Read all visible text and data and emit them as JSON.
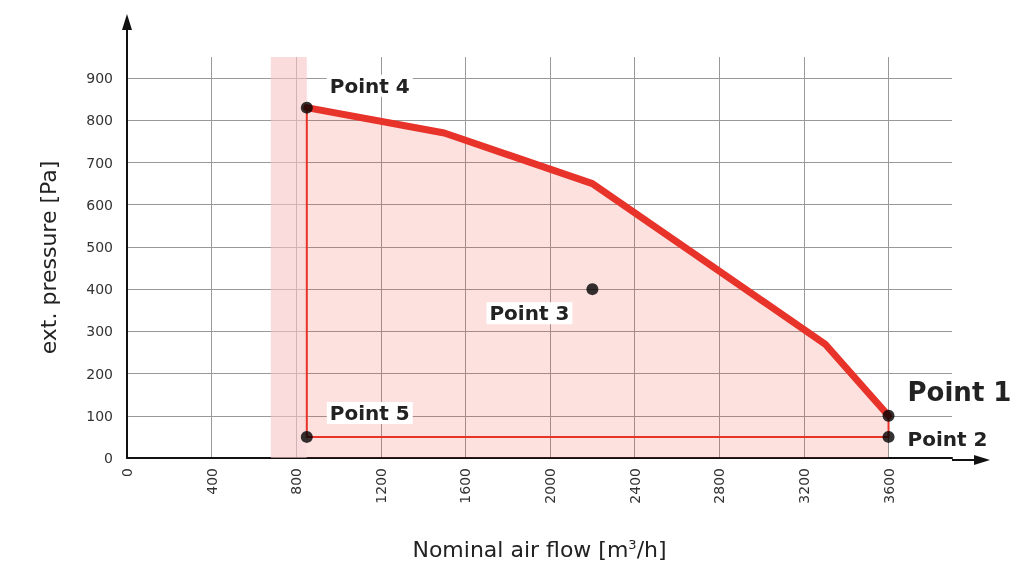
{
  "chart_data": {
    "type": "line",
    "xlabel": "Nominal air flow [m$^{3}$/h]",
    "ylabel": "ext. pressure [Pa]",
    "xlim": [
      0,
      3900
    ],
    "xticks": [
      0,
      400,
      800,
      1200,
      1600,
      2000,
      2400,
      2800,
      3200,
      3600
    ],
    "ylim": [
      0,
      950
    ],
    "yticks": [
      0,
      100,
      200,
      300,
      400,
      500,
      600,
      700,
      800,
      900
    ],
    "grid": true,
    "series": [
      {
        "type": "area",
        "color": "#e8332a",
        "x": [
          850,
          1500,
          2200,
          3300,
          3600
        ],
        "values": [
          830,
          770,
          650,
          270,
          100
        ],
        "marker": "none"
      },
      {
        "color": "#e8332a",
        "x": [
          850,
          850,
          3600,
          3600
        ],
        "values": [
          830,
          50,
          50,
          100
        ],
        "marker": "none"
      },
      {
        "type": "scatter",
        "color": "#000000",
        "x": [
          3600,
          3600,
          2200,
          850,
          850
        ],
        "values": [
          100,
          50,
          400,
          830,
          50
        ],
        "marker": "circle"
      }
    ],
    "bands": [
      {
        "axis": "x",
        "from": 680,
        "to": 850,
        "color": "#f6c4c4"
      }
    ],
    "annotations": [
      {
        "text": "Point 1",
        "x": 3600,
        "y": 100
      },
      {
        "text": "Point 2",
        "x": 3600,
        "y": 50
      },
      {
        "text": "Point 3",
        "x": 2200,
        "y": 400
      },
      {
        "text": "Point 4",
        "x": 850,
        "y": 830
      },
      {
        "text": "Point 5",
        "x": 850,
        "y": 50
      }
    ]
  }
}
